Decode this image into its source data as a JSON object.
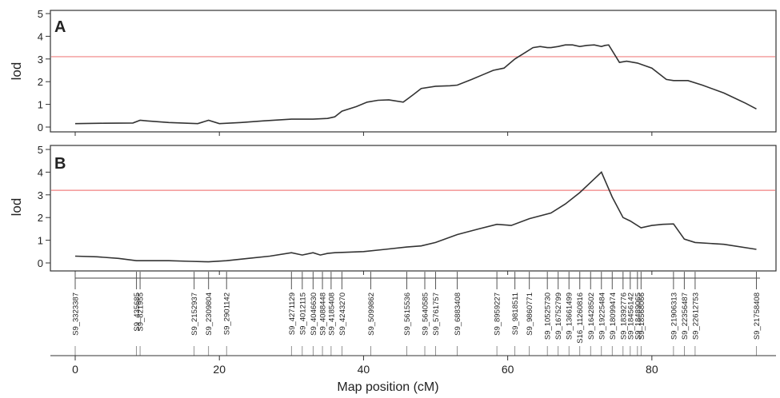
{
  "chart_data": [
    {
      "type": "line",
      "panel_label": "A",
      "ylabel": "lod",
      "ylim": [
        0,
        5
      ],
      "yticks": [
        "0",
        "1",
        "2",
        "3",
        "4",
        "5"
      ],
      "xlim": [
        0,
        95
      ],
      "threshold": 3.1,
      "colors": {
        "line": "#333333",
        "threshold": "#f08080"
      },
      "series": [
        {
          "x": [
            0,
            4,
            8,
            9,
            10,
            13,
            17,
            18.5,
            20,
            23,
            26,
            30,
            33,
            35,
            36,
            37,
            39,
            40.5,
            42,
            43.5,
            45.5,
            47,
            48,
            50,
            52,
            53,
            55,
            56.5,
            58,
            59.5,
            61,
            62.5,
            63.5,
            64.5,
            65.5,
            66,
            67,
            68,
            69,
            70,
            71,
            72,
            73,
            73.5,
            74,
            75.5,
            76.5,
            78,
            80,
            82,
            83,
            85,
            87,
            90,
            93,
            94.5
          ],
          "y": [
            0.15,
            0.17,
            0.18,
            0.3,
            0.27,
            0.2,
            0.15,
            0.3,
            0.15,
            0.2,
            0.27,
            0.35,
            0.35,
            0.38,
            0.45,
            0.7,
            0.9,
            1.1,
            1.18,
            1.2,
            1.1,
            1.45,
            1.7,
            1.8,
            1.82,
            1.85,
            2.1,
            2.3,
            2.5,
            2.6,
            3.0,
            3.3,
            3.5,
            3.55,
            3.5,
            3.5,
            3.55,
            3.62,
            3.62,
            3.55,
            3.6,
            3.62,
            3.55,
            3.6,
            3.62,
            2.85,
            2.9,
            2.82,
            2.6,
            2.1,
            2.05,
            2.05,
            1.85,
            1.5,
            1.05,
            0.8
          ]
        }
      ]
    },
    {
      "type": "line",
      "panel_label": "B",
      "ylabel": "lod",
      "ylim": [
        0,
        5
      ],
      "yticks": [
        "0",
        "1",
        "2",
        "3",
        "4",
        "5"
      ],
      "xlim": [
        0,
        95
      ],
      "threshold": 3.2,
      "colors": {
        "line": "#333333",
        "threshold": "#f08080"
      },
      "series": [
        {
          "x": [
            0,
            3,
            6,
            8.5,
            10,
            13,
            16,
            18.5,
            21,
            24,
            27,
            30,
            31.5,
            33,
            34,
            35,
            36,
            40,
            43,
            46,
            48,
            50,
            53,
            56,
            58.5,
            60.5,
            63,
            66,
            68,
            70,
            72,
            73,
            74.5,
            76,
            77,
            78.5,
            80,
            81.5,
            83,
            84.5,
            86,
            90,
            94.5
          ],
          "y": [
            0.3,
            0.27,
            0.2,
            0.1,
            0.1,
            0.1,
            0.07,
            0.05,
            0.1,
            0.2,
            0.3,
            0.45,
            0.35,
            0.45,
            0.35,
            0.42,
            0.45,
            0.5,
            0.6,
            0.7,
            0.75,
            0.9,
            1.25,
            1.5,
            1.7,
            1.65,
            1.95,
            2.2,
            2.6,
            3.1,
            3.7,
            4.0,
            2.9,
            2.0,
            1.85,
            1.55,
            1.65,
            1.7,
            1.72,
            1.05,
            0.9,
            0.82,
            0.6
          ]
        }
      ]
    },
    {
      "type": "scatter",
      "panel_label": "",
      "xlabel": "Map position (cM)",
      "xticks": [
        "0",
        "20",
        "40",
        "60",
        "80"
      ],
      "x_tick_values": [
        0,
        20,
        40,
        60,
        80
      ],
      "markers": [
        {
          "name": "S9_3323387",
          "x": 0
        },
        {
          "name": "S9_435685",
          "x": 8.5
        },
        {
          "name": "S9_821955",
          "x": 9
        },
        {
          "name": "S9_2152937",
          "x": 16.5
        },
        {
          "name": "S9_2309804",
          "x": 18.5
        },
        {
          "name": "S9_2901142",
          "x": 21
        },
        {
          "name": "S9_4271129",
          "x": 30
        },
        {
          "name": "S9_4012115",
          "x": 31.5
        },
        {
          "name": "S9_4046630",
          "x": 33
        },
        {
          "name": "S9_4088448",
          "x": 34.3
        },
        {
          "name": "S9_4185408",
          "x": 35.5
        },
        {
          "name": "S9_4243270",
          "x": 37
        },
        {
          "name": "S9_5099862",
          "x": 41
        },
        {
          "name": "S9_5615536",
          "x": 46
        },
        {
          "name": "S9_5640585",
          "x": 48.5
        },
        {
          "name": "S9_5761757",
          "x": 50
        },
        {
          "name": "S9_6883408",
          "x": 53
        },
        {
          "name": "S9_8959227",
          "x": 58.5
        },
        {
          "name": "S9_9818511",
          "x": 61
        },
        {
          "name": "S9_9860771",
          "x": 63
        },
        {
          "name": "S9_10525730",
          "x": 65.5
        },
        {
          "name": "S9_16752799",
          "x": 67
        },
        {
          "name": "S9_13661499",
          "x": 68.5
        },
        {
          "name": "S16_11260816",
          "x": 70
        },
        {
          "name": "S9_16428502",
          "x": 71.5
        },
        {
          "name": "S9_19225484",
          "x": 73
        },
        {
          "name": "S9_18099474",
          "x": 74.5
        },
        {
          "name": "S9_18392776",
          "x": 76
        },
        {
          "name": "S9_18456142",
          "x": 77
        },
        {
          "name": "S9_18489065",
          "x": 78
        },
        {
          "name": "S9_18568066",
          "x": 78.5
        },
        {
          "name": "S9_21906313",
          "x": 83
        },
        {
          "name": "S9_22356487",
          "x": 84.5
        },
        {
          "name": "S9_22612753",
          "x": 86
        },
        {
          "name": "S9_21758408",
          "x": 94.5
        }
      ]
    }
  ]
}
